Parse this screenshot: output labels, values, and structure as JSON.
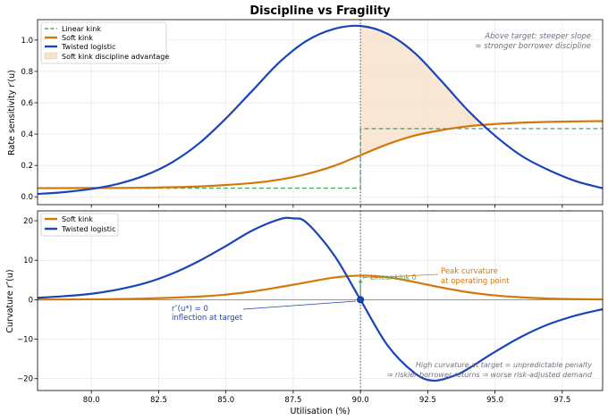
{
  "title": "Discipline vs Fragility",
  "colors": {
    "linear": "#5aa36e",
    "soft": "#d4780a",
    "twisted": "#1a45b8",
    "fill": "#f6e3cc",
    "grid": "#e6e6e6",
    "note": "#707080",
    "target": "#555555"
  },
  "chart_data": [
    {
      "type": "line",
      "panel": "top",
      "xlabel": "",
      "ylabel": "Rate sensitivity  r′(u)",
      "xlim": [
        78,
        99
      ],
      "ylim": [
        -0.05,
        1.13
      ],
      "xticks": [
        80.0,
        82.5,
        85.0,
        87.5,
        90.0,
        92.5,
        95.0,
        97.5
      ],
      "xtick_labels": [
        "80.0",
        "82.5",
        "85.0",
        "87.5",
        "90.0",
        "92.5",
        "95.0",
        "97.5"
      ],
      "yticks": [
        0.0,
        0.2,
        0.4,
        0.6,
        0.8,
        1.0
      ],
      "ytick_labels": [
        "0.0",
        "0.2",
        "0.4",
        "0.6",
        "0.8",
        "1.0"
      ],
      "target": 90.0,
      "series": [
        {
          "name": "Linear kink",
          "key": "linear",
          "style": "dashed",
          "points": [
            [
              78,
              0.055
            ],
            [
              90,
              0.055
            ],
            [
              90,
              0.435
            ],
            [
              99,
              0.435
            ]
          ]
        },
        {
          "name": "Soft kink",
          "key": "soft",
          "style": "solid",
          "points": [
            [
              78,
              0.055
            ],
            [
              80,
              0.056
            ],
            [
              82,
              0.058
            ],
            [
              84,
              0.066
            ],
            [
              86,
              0.088
            ],
            [
              87,
              0.11
            ],
            [
              88,
              0.145
            ],
            [
              89,
              0.196
            ],
            [
              90,
              0.265
            ],
            [
              91,
              0.335
            ],
            [
              92,
              0.39
            ],
            [
              93,
              0.425
            ],
            [
              94,
              0.45
            ],
            [
              95,
              0.464
            ],
            [
              96,
              0.473
            ],
            [
              97,
              0.478
            ],
            [
              98,
              0.481
            ],
            [
              99,
              0.483
            ]
          ]
        },
        {
          "name": "Twisted logistic",
          "key": "twisted",
          "style": "solid",
          "points": [
            [
              78,
              0.018
            ],
            [
              79,
              0.03
            ],
            [
              80,
              0.05
            ],
            [
              81,
              0.083
            ],
            [
              82,
              0.137
            ],
            [
              83,
              0.22
            ],
            [
              84,
              0.34
            ],
            [
              85,
              0.5
            ],
            [
              86,
              0.68
            ],
            [
              87,
              0.86
            ],
            [
              88,
              0.995
            ],
            [
              89,
              1.07
            ],
            [
              90,
              1.09
            ],
            [
              91,
              1.04
            ],
            [
              92,
              0.92
            ],
            [
              93,
              0.74
            ],
            [
              94,
              0.55
            ],
            [
              95,
              0.39
            ],
            [
              96,
              0.26
            ],
            [
              97,
              0.17
            ],
            [
              98,
              0.1
            ],
            [
              99,
              0.055
            ]
          ]
        }
      ],
      "fill_label": "Soft kink discipline advantage",
      "legend": [
        "Linear kink",
        "Soft kink",
        "Twisted logistic",
        "Soft kink discipline advantage"
      ],
      "legend_position": "upper-left",
      "annotations": [
        "Above target: steeper slope",
        "= stronger borrower discipline"
      ]
    },
    {
      "type": "line",
      "panel": "bottom",
      "xlabel": "Utilisation (%)",
      "ylabel": "Curvature  r″(u)",
      "xlim": [
        78,
        99
      ],
      "ylim": [
        -23,
        22.5
      ],
      "xticks": [
        80.0,
        82.5,
        85.0,
        87.5,
        90.0,
        92.5,
        95.0,
        97.5
      ],
      "xtick_labels": [
        "80.0",
        "82.5",
        "85.0",
        "87.5",
        "90.0",
        "92.5",
        "95.0",
        "97.5"
      ],
      "yticks": [
        -20,
        -10,
        0,
        10,
        20
      ],
      "ytick_labels": [
        "−20",
        "−10",
        "0",
        "10",
        "20"
      ],
      "target": 90.0,
      "series": [
        {
          "name": "Soft kink",
          "key": "soft",
          "style": "solid",
          "points": [
            [
              78,
              0.05
            ],
            [
              80,
              0.1
            ],
            [
              82,
              0.3
            ],
            [
              84,
              0.8
            ],
            [
              85,
              1.3
            ],
            [
              86,
              2.1
            ],
            [
              87,
              3.2
            ],
            [
              88,
              4.4
            ],
            [
              89,
              5.6
            ],
            [
              90,
              6.1
            ],
            [
              91,
              5.7
            ],
            [
              92,
              4.5
            ],
            [
              93,
              3.1
            ],
            [
              94,
              1.9
            ],
            [
              95,
              1.1
            ],
            [
              96,
              0.6
            ],
            [
              97,
              0.3
            ],
            [
              98,
              0.15
            ],
            [
              99,
              0.08
            ]
          ]
        },
        {
          "name": "Twisted logistic",
          "key": "twisted",
          "style": "solid",
          "points": [
            [
              78,
              0.5
            ],
            [
              79,
              0.9
            ],
            [
              80,
              1.5
            ],
            [
              81,
              2.6
            ],
            [
              82,
              4.2
            ],
            [
              83,
              6.6
            ],
            [
              84,
              9.8
            ],
            [
              85,
              13.6
            ],
            [
              86,
              17.6
            ],
            [
              87,
              20.4
            ],
            [
              87.5,
              20.6
            ],
            [
              88,
              19.5
            ],
            [
              89,
              11.5
            ],
            [
              90,
              0
            ],
            [
              91,
              -11.5
            ],
            [
              92,
              -18.5
            ],
            [
              92.7,
              -20.5
            ],
            [
              93.5,
              -19.2
            ],
            [
              94,
              -17.5
            ],
            [
              95,
              -13.2
            ],
            [
              96,
              -9.3
            ],
            [
              97,
              -6.2
            ],
            [
              98,
              -4.0
            ],
            [
              99,
              -2.4
            ]
          ]
        }
      ],
      "legend": [
        "Soft kink",
        "Twisted logistic"
      ],
      "legend_position": "upper-left",
      "annotations": {
        "linear_kink": "← Linear kink δ",
        "peak": [
          "Peak curvature",
          "at operating point"
        ],
        "inflection": [
          "r″(u*) = 0",
          "inflection at target"
        ],
        "note": [
          "High curvature at target = unpredictable penalty",
          "⇒ riskier borrower returns ⇒ worse risk-adjusted demand"
        ]
      },
      "inflection_point": [
        90,
        0
      ]
    }
  ]
}
